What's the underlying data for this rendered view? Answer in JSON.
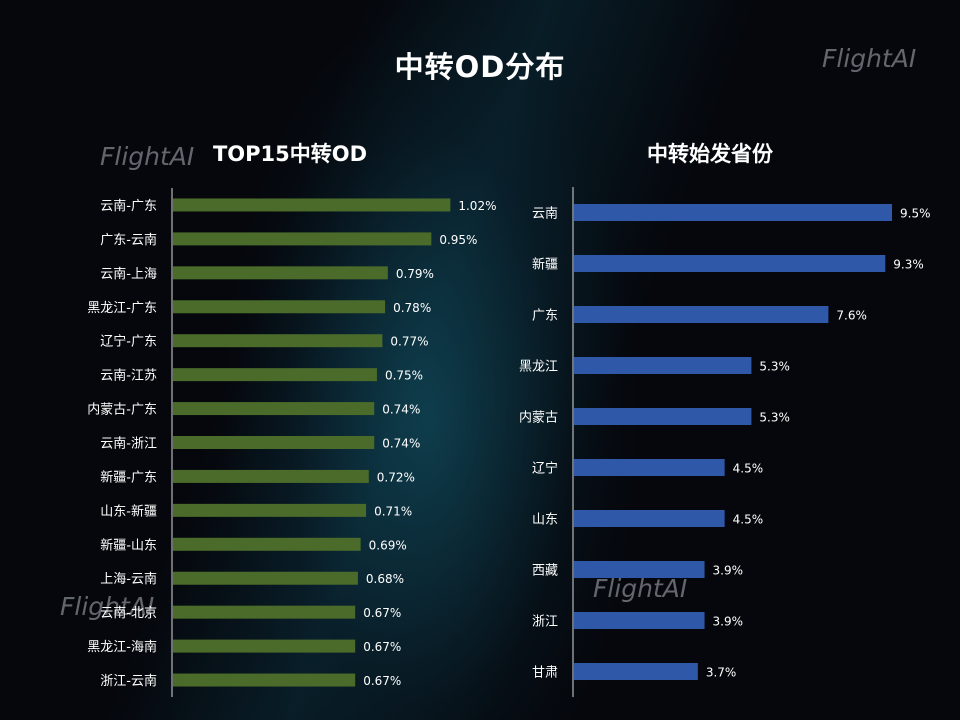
{
  "page_title": "中转OD分布",
  "watermarks": [
    "FlightAI",
    "FlightAI",
    "FlightAI",
    "FlightAI"
  ],
  "colors": {
    "left_bar": "#4a6b2a",
    "right_bar": "#2f58a8",
    "axis": "#d9d9d9"
  },
  "chart_data": [
    {
      "type": "bar",
      "orientation": "horizontal",
      "title": "TOP15中转OD",
      "categories": [
        "云南-广东",
        "广东-云南",
        "云南-上海",
        "黑龙江-广东",
        "辽宁-广东",
        "云南-江苏",
        "内蒙古-广东",
        "云南-浙江",
        "新疆-广东",
        "山东-新疆",
        "新疆-山东",
        "上海-云南",
        "云南-北京",
        "黑龙江-海南",
        "浙江-云南"
      ],
      "values": [
        1.02,
        0.95,
        0.79,
        0.78,
        0.77,
        0.75,
        0.74,
        0.74,
        0.72,
        0.71,
        0.69,
        0.68,
        0.67,
        0.67,
        0.67
      ],
      "value_labels": [
        "1.02%",
        "0.95%",
        "0.79%",
        "0.78%",
        "0.77%",
        "0.75%",
        "0.74%",
        "0.74%",
        "0.72%",
        "0.71%",
        "0.69%",
        "0.68%",
        "0.67%",
        "0.67%",
        "0.67%"
      ],
      "unit": "%",
      "xlim": [
        0,
        1.14
      ]
    },
    {
      "type": "bar",
      "orientation": "horizontal",
      "title": "中转始发省份",
      "categories": [
        "云南",
        "新疆",
        "广东",
        "黑龙江",
        "内蒙古",
        "辽宁",
        "山东",
        "西藏",
        "浙江",
        "甘肃"
      ],
      "values": [
        9.5,
        9.3,
        7.6,
        5.3,
        5.3,
        4.5,
        4.5,
        3.9,
        3.9,
        3.7
      ],
      "value_labels": [
        "9.5%",
        "9.3%",
        "7.6%",
        "5.3%",
        "5.3%",
        "4.5%",
        "4.5%",
        "3.9%",
        "3.9%",
        "3.7%"
      ],
      "unit": "%",
      "xlim": [
        0,
        9.5
      ]
    }
  ]
}
